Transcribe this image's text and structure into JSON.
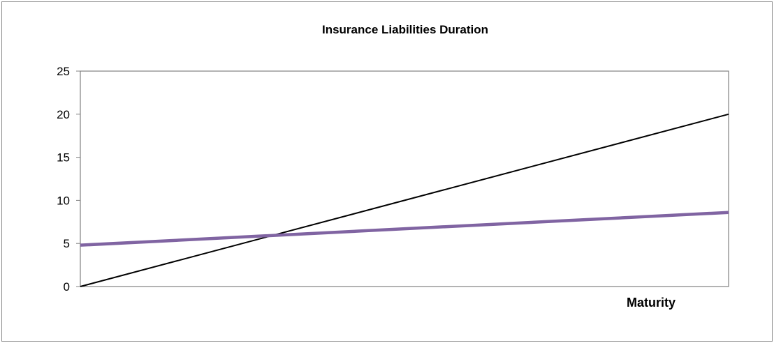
{
  "chart_data": {
    "type": "line",
    "title": "Insurance Liabilities Duration",
    "xlabel": "Maturity",
    "ylabel": "",
    "ylim": [
      0,
      25
    ],
    "yticks": [
      "0",
      "5",
      "10",
      "15",
      "20",
      "25"
    ],
    "x": [
      0,
      1
    ],
    "grid": false,
    "legend": "none",
    "series": [
      {
        "values": [
          0,
          20
        ],
        "color": "#000000"
      },
      {
        "values": [
          4.8,
          8.6
        ],
        "color": "#8064a2"
      }
    ]
  }
}
